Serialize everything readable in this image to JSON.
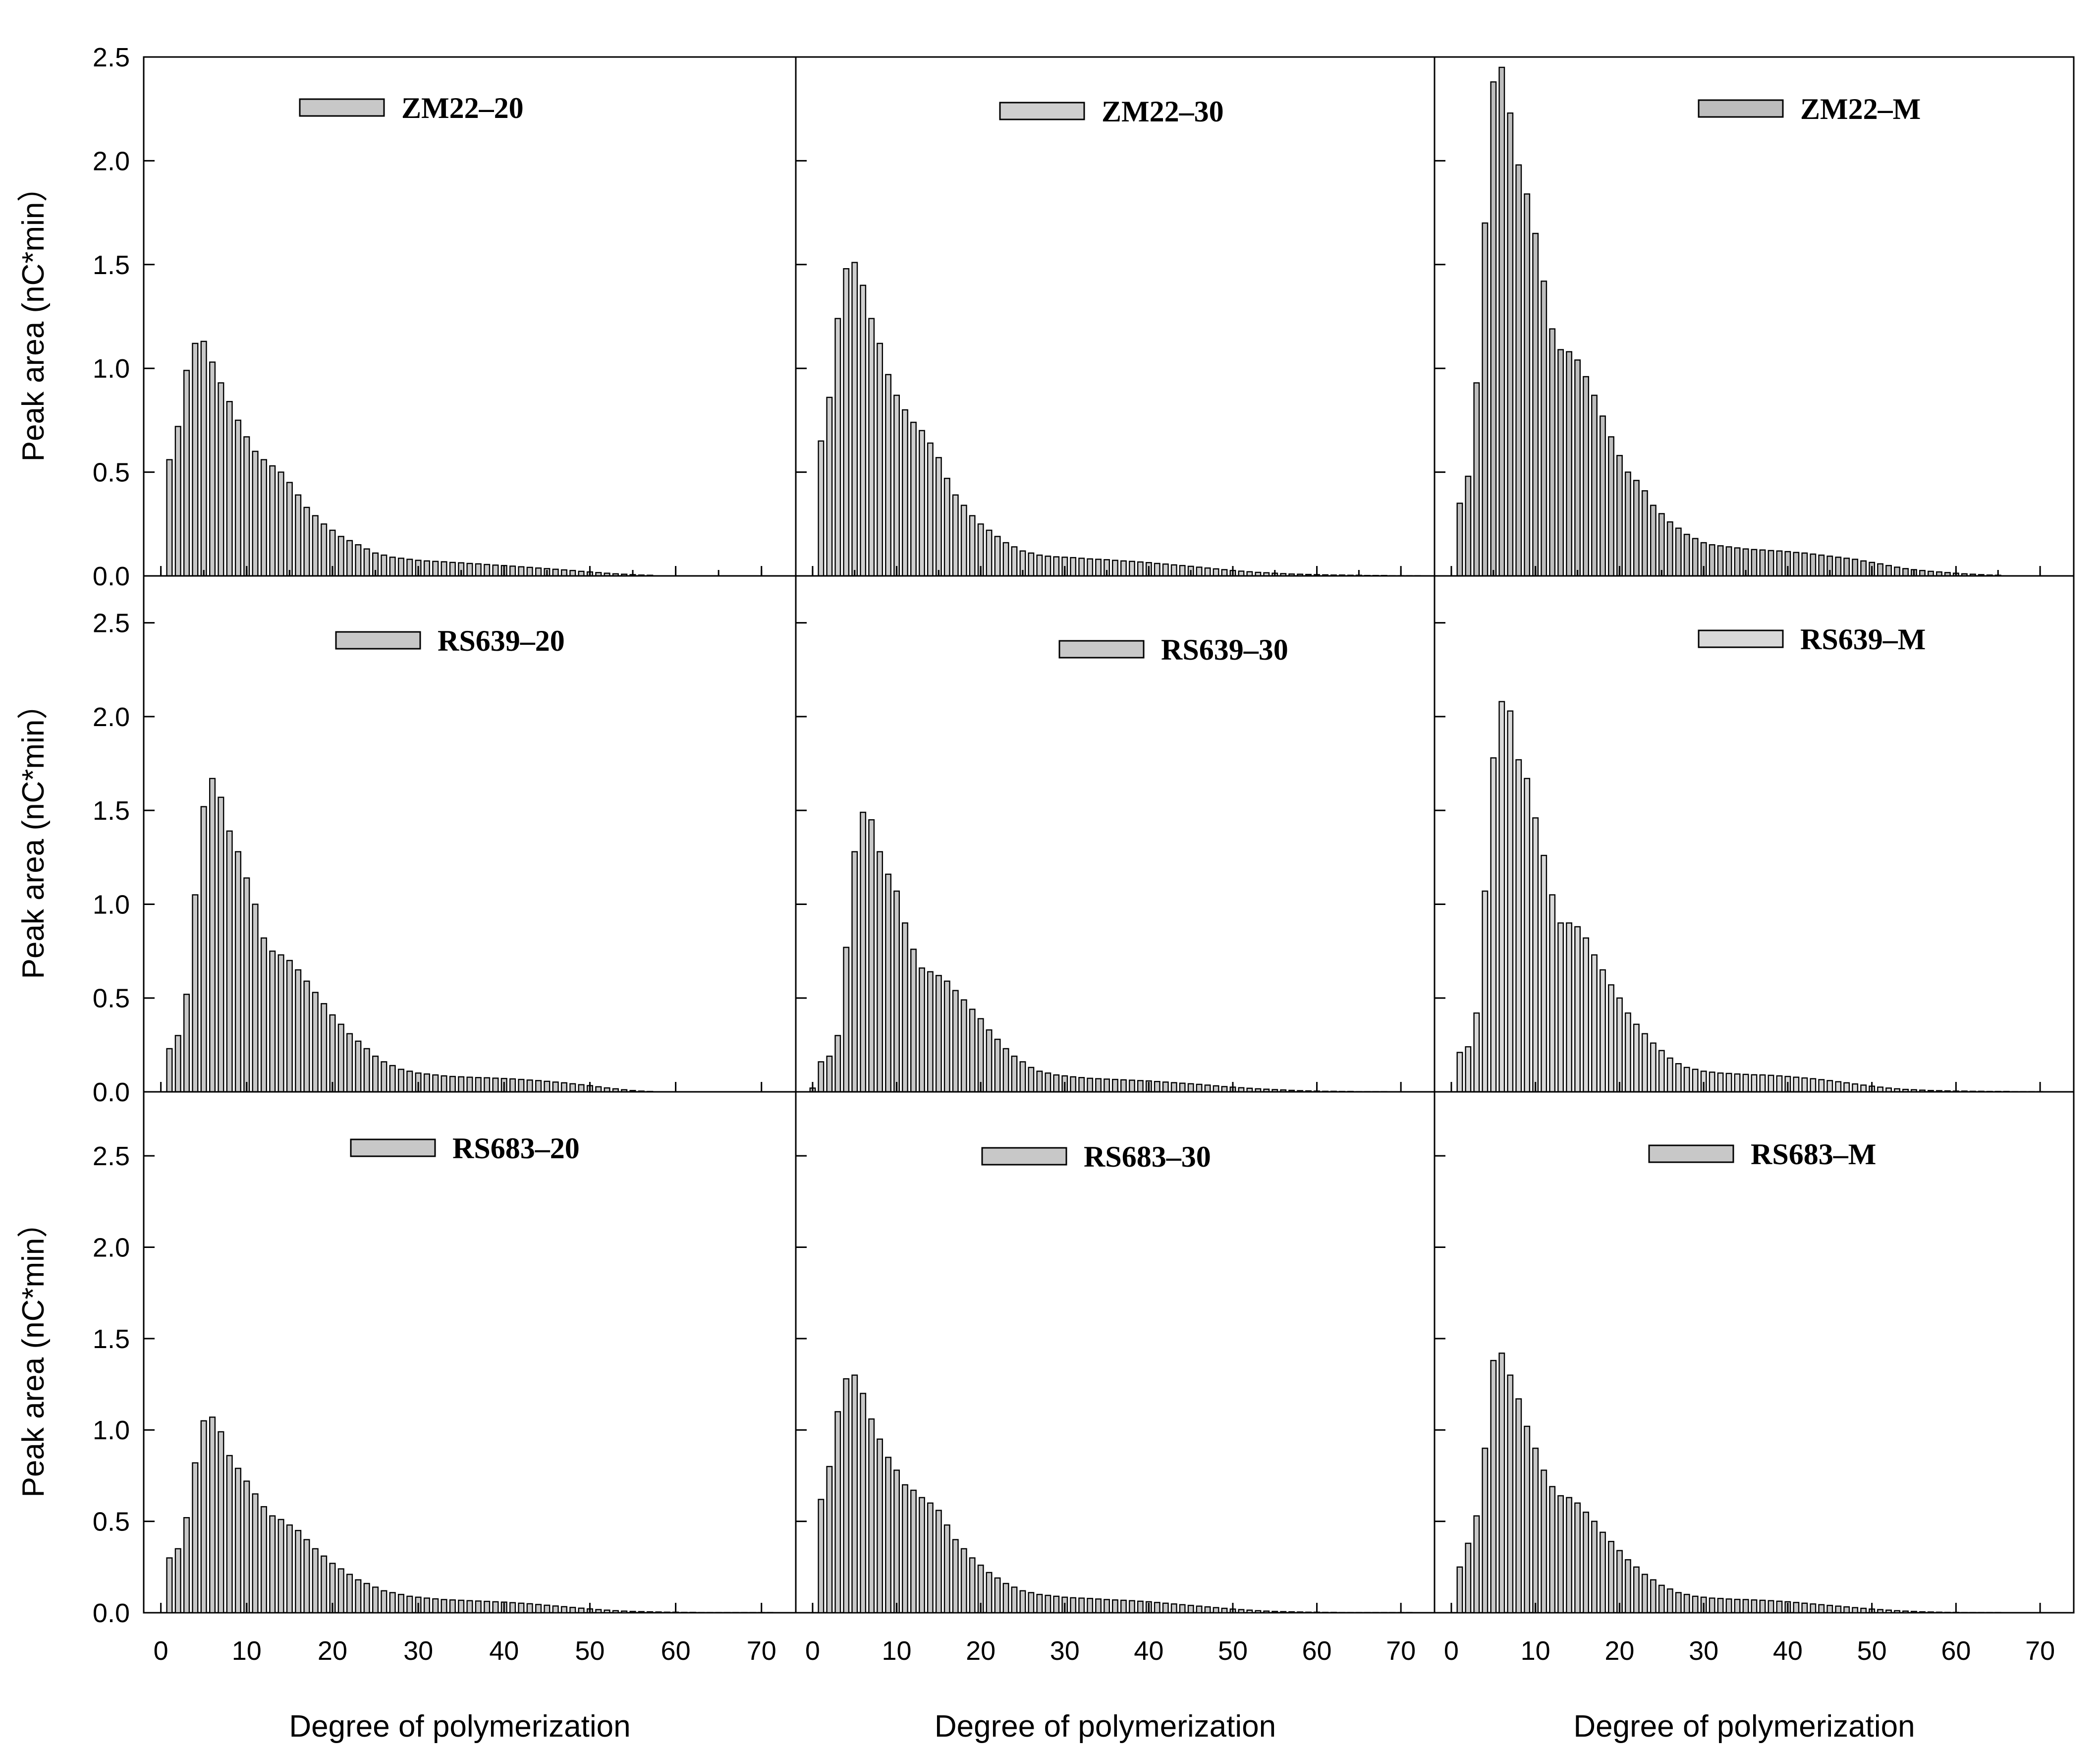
{
  "figure": {
    "x_axis_label": "Degree of polymerization",
    "y_axis_label": "Peak area (nC*min）"
  },
  "chart_data": [
    {
      "type": "bar",
      "title": "",
      "legend": "ZM22–20",
      "fill": "#c8c8c8",
      "xlabel": "Degree of polymerization",
      "ylabel": "Peak area (nC*min）",
      "xlim": [
        -2,
        74
      ],
      "ylim": [
        0,
        2.5
      ],
      "xticks": [
        0,
        10,
        20,
        30,
        40,
        50,
        60,
        70
      ],
      "xtick_labels": [
        "0",
        "10",
        "20",
        "30",
        "40",
        "50",
        "60",
        "70"
      ],
      "yticks": [
        0,
        0.5,
        1.0,
        1.5,
        2.0,
        2.5
      ],
      "ytick_labels": [
        "0.0",
        "0.5",
        "1.0",
        "1.5",
        "2.0",
        "2.5"
      ],
      "x_start": 1,
      "values": [
        0.56,
        0.72,
        0.99,
        1.12,
        1.13,
        1.03,
        0.93,
        0.84,
        0.75,
        0.67,
        0.6,
        0.56,
        0.53,
        0.5,
        0.45,
        0.39,
        0.33,
        0.29,
        0.25,
        0.22,
        0.19,
        0.17,
        0.15,
        0.13,
        0.11,
        0.1,
        0.09,
        0.085,
        0.08,
        0.075,
        0.072,
        0.07,
        0.068,
        0.065,
        0.063,
        0.06,
        0.058,
        0.055,
        0.052,
        0.05,
        0.047,
        0.044,
        0.041,
        0.038,
        0.035,
        0.032,
        0.029,
        0.026,
        0.022,
        0.019,
        0.016,
        0.013,
        0.01,
        0.008,
        0.006,
        0.004,
        0.003
      ]
    },
    {
      "type": "bar",
      "title": "",
      "legend": "ZM22–30",
      "fill": "#cfcfcf",
      "xlabel": "Degree of polymerization",
      "ylabel": "Peak area (nC*min）",
      "xlim": [
        -2,
        74
      ],
      "ylim": [
        0,
        2.5
      ],
      "xticks": [
        0,
        10,
        20,
        30,
        40,
        50,
        60,
        70
      ],
      "xtick_labels": [
        "0",
        "10",
        "20",
        "30",
        "40",
        "50",
        "60",
        "70"
      ],
      "yticks": [
        0,
        0.5,
        1.0,
        1.5,
        2.0,
        2.5
      ],
      "ytick_labels": [
        "0.0",
        "0.5",
        "1.0",
        "1.5",
        "2.0",
        "2.5"
      ],
      "x_start": 1,
      "values": [
        0.65,
        0.86,
        1.24,
        1.48,
        1.51,
        1.4,
        1.24,
        1.12,
        0.97,
        0.87,
        0.8,
        0.74,
        0.7,
        0.64,
        0.57,
        0.47,
        0.39,
        0.34,
        0.29,
        0.25,
        0.22,
        0.19,
        0.16,
        0.14,
        0.12,
        0.11,
        0.1,
        0.095,
        0.092,
        0.09,
        0.088,
        0.085,
        0.082,
        0.08,
        0.078,
        0.075,
        0.072,
        0.07,
        0.067,
        0.064,
        0.06,
        0.057,
        0.053,
        0.05,
        0.046,
        0.042,
        0.038,
        0.034,
        0.03,
        0.026,
        0.023,
        0.02,
        0.017,
        0.015,
        0.013,
        0.011,
        0.009,
        0.008,
        0.007,
        0.006,
        0.005,
        0.004,
        0.004,
        0.003,
        0.003,
        0.002,
        0.002,
        0.002,
        0.001,
        0.001,
        0.001,
        0.001
      ]
    },
    {
      "type": "bar",
      "title": "",
      "legend": "ZM22–M",
      "fill": "#bdbdbd",
      "xlabel": "Degree of polymerization",
      "ylabel": "Peak area (nC*min）",
      "xlim": [
        -2,
        74
      ],
      "ylim": [
        0,
        2.5
      ],
      "xticks": [
        0,
        10,
        20,
        30,
        40,
        50,
        60,
        70
      ],
      "xtick_labels": [
        "0",
        "10",
        "20",
        "30",
        "40",
        "50",
        "60",
        "70"
      ],
      "yticks": [
        0,
        0.5,
        1.0,
        1.5,
        2.0,
        2.5
      ],
      "ytick_labels": [
        "0.0",
        "0.5",
        "1.0",
        "1.5",
        "2.0",
        "2.5"
      ],
      "x_start": 1,
      "values": [
        0.35,
        0.48,
        0.93,
        1.7,
        2.38,
        2.45,
        2.23,
        1.98,
        1.84,
        1.65,
        1.42,
        1.19,
        1.09,
        1.08,
        1.04,
        0.96,
        0.87,
        0.77,
        0.67,
        0.58,
        0.5,
        0.46,
        0.41,
        0.34,
        0.3,
        0.26,
        0.23,
        0.2,
        0.18,
        0.16,
        0.15,
        0.145,
        0.14,
        0.135,
        0.13,
        0.127,
        0.125,
        0.122,
        0.12,
        0.117,
        0.113,
        0.11,
        0.105,
        0.1,
        0.095,
        0.09,
        0.085,
        0.08,
        0.072,
        0.065,
        0.058,
        0.05,
        0.042,
        0.035,
        0.03,
        0.026,
        0.022,
        0.019,
        0.016,
        0.013,
        0.01,
        0.008,
        0.006,
        0.004,
        0.003
      ]
    },
    {
      "type": "bar",
      "title": "",
      "legend": "RS639–20",
      "fill": "#c8c8c8",
      "xlabel": "Degree of polymerization",
      "ylabel": "Peak area (nC*min）",
      "xlim": [
        -2,
        74
      ],
      "ylim": [
        0,
        2.75
      ],
      "xticks": [
        0,
        10,
        20,
        30,
        40,
        50,
        60,
        70
      ],
      "xtick_labels": [
        "0",
        "10",
        "20",
        "30",
        "40",
        "50",
        "60",
        "70"
      ],
      "yticks": [
        0,
        0.5,
        1.0,
        1.5,
        2.0,
        2.5
      ],
      "ytick_labels": [
        "0.0",
        "0.5",
        "1.0",
        "1.5",
        "2.0",
        "2.5"
      ],
      "x_start": 1,
      "values": [
        0.23,
        0.3,
        0.52,
        1.05,
        1.52,
        1.67,
        1.57,
        1.39,
        1.28,
        1.14,
        1.0,
        0.82,
        0.75,
        0.73,
        0.7,
        0.65,
        0.59,
        0.53,
        0.47,
        0.41,
        0.36,
        0.31,
        0.27,
        0.23,
        0.19,
        0.16,
        0.14,
        0.12,
        0.11,
        0.1,
        0.095,
        0.09,
        0.085,
        0.082,
        0.08,
        0.078,
        0.076,
        0.075,
        0.073,
        0.071,
        0.069,
        0.066,
        0.063,
        0.06,
        0.056,
        0.052,
        0.048,
        0.043,
        0.038,
        0.033,
        0.027,
        0.021,
        0.016,
        0.011,
        0.007,
        0.004,
        0.002
      ]
    },
    {
      "type": "bar",
      "title": "",
      "legend": "RS639–30",
      "fill": "#c8c8c8",
      "xlabel": "Degree of polymerization",
      "ylabel": "Peak area (nC*min）",
      "xlim": [
        -2,
        74
      ],
      "ylim": [
        0,
        2.75
      ],
      "xticks": [
        0,
        10,
        20,
        30,
        40,
        50,
        60,
        70
      ],
      "xtick_labels": [
        "0",
        "10",
        "20",
        "30",
        "40",
        "50",
        "60",
        "70"
      ],
      "yticks": [
        0,
        0.5,
        1.0,
        1.5,
        2.0,
        2.5
      ],
      "ytick_labels": [
        "0.0",
        "0.5",
        "1.0",
        "1.5",
        "2.0",
        "2.5"
      ],
      "x_start": 0,
      "values": [
        0.02,
        0.16,
        0.19,
        0.3,
        0.77,
        1.28,
        1.49,
        1.45,
        1.28,
        1.16,
        1.07,
        0.9,
        0.76,
        0.66,
        0.64,
        0.62,
        0.59,
        0.54,
        0.49,
        0.44,
        0.39,
        0.33,
        0.28,
        0.23,
        0.19,
        0.16,
        0.13,
        0.11,
        0.1,
        0.09,
        0.085,
        0.08,
        0.076,
        0.072,
        0.07,
        0.068,
        0.066,
        0.064,
        0.062,
        0.06,
        0.058,
        0.055,
        0.052,
        0.049,
        0.046,
        0.043,
        0.04,
        0.036,
        0.032,
        0.028,
        0.025,
        0.022,
        0.019,
        0.016,
        0.014,
        0.012,
        0.01,
        0.008,
        0.006,
        0.005,
        0.004,
        0.003,
        0.003,
        0.002,
        0.002,
        0.001,
        0.001,
        0.001,
        0.001
      ]
    },
    {
      "type": "bar",
      "title": "",
      "legend": "RS639–M",
      "fill": "#d9d9d9",
      "xlabel": "Degree of polymerization",
      "ylabel": "Peak area (nC*min）",
      "xlim": [
        -2,
        74
      ],
      "ylim": [
        0,
        2.75
      ],
      "xticks": [
        0,
        10,
        20,
        30,
        40,
        50,
        60,
        70
      ],
      "xtick_labels": [
        "0",
        "10",
        "20",
        "30",
        "40",
        "50",
        "60",
        "70"
      ],
      "yticks": [
        0,
        0.5,
        1.0,
        1.5,
        2.0,
        2.5
      ],
      "ytick_labels": [
        "0.0",
        "0.5",
        "1.0",
        "1.5",
        "2.0",
        "2.5"
      ],
      "x_start": 1,
      "values": [
        0.21,
        0.24,
        0.42,
        1.07,
        1.78,
        2.08,
        2.03,
        1.77,
        1.67,
        1.46,
        1.26,
        1.05,
        0.9,
        0.9,
        0.88,
        0.82,
        0.73,
        0.65,
        0.57,
        0.5,
        0.42,
        0.36,
        0.31,
        0.26,
        0.22,
        0.18,
        0.15,
        0.13,
        0.12,
        0.11,
        0.105,
        0.1,
        0.098,
        0.095,
        0.093,
        0.091,
        0.09,
        0.088,
        0.085,
        0.082,
        0.078,
        0.074,
        0.07,
        0.065,
        0.06,
        0.054,
        0.048,
        0.042,
        0.036,
        0.03,
        0.025,
        0.02,
        0.016,
        0.013,
        0.011,
        0.009,
        0.007,
        0.006,
        0.005,
        0.004,
        0.004,
        0.003,
        0.003,
        0.002,
        0.002,
        0.002,
        0.001,
        0.001,
        0.001,
        0.001
      ]
    },
    {
      "type": "bar",
      "title": "",
      "legend": "RS683–20",
      "fill": "#c8c8c8",
      "xlabel": "Degree of polymerization",
      "ylabel": "Peak area (nC*min）",
      "xlim": [
        -2,
        74
      ],
      "ylim": [
        0,
        2.85
      ],
      "xticks": [
        0,
        10,
        20,
        30,
        40,
        50,
        60,
        70
      ],
      "xtick_labels": [
        "0",
        "10",
        "20",
        "30",
        "40",
        "50",
        "60",
        "70"
      ],
      "yticks": [
        0,
        0.5,
        1.0,
        1.5,
        2.0,
        2.5
      ],
      "ytick_labels": [
        "0.0",
        "0.5",
        "1.0",
        "1.5",
        "2.0",
        "2.5"
      ],
      "x_start": 1,
      "values": [
        0.3,
        0.35,
        0.52,
        0.82,
        1.05,
        1.07,
        0.99,
        0.86,
        0.79,
        0.72,
        0.65,
        0.58,
        0.53,
        0.51,
        0.48,
        0.45,
        0.4,
        0.35,
        0.31,
        0.27,
        0.24,
        0.21,
        0.18,
        0.16,
        0.14,
        0.12,
        0.11,
        0.1,
        0.09,
        0.085,
        0.08,
        0.076,
        0.072,
        0.07,
        0.068,
        0.066,
        0.064,
        0.062,
        0.06,
        0.058,
        0.055,
        0.052,
        0.049,
        0.045,
        0.041,
        0.037,
        0.033,
        0.029,
        0.025,
        0.021,
        0.017,
        0.014,
        0.011,
        0.009,
        0.007,
        0.006,
        0.005,
        0.004,
        0.003,
        0.003,
        0.002,
        0.002,
        0.001,
        0.001,
        0.001,
        0.001,
        0.001,
        0.001,
        0.001,
        0.001,
        0.001
      ]
    },
    {
      "type": "bar",
      "title": "",
      "legend": "RS683–30",
      "fill": "#c8c8c8",
      "xlabel": "Degree of polymerization",
      "ylabel": "Peak area (nC*min）",
      "xlim": [
        -2,
        74
      ],
      "ylim": [
        0,
        2.85
      ],
      "xticks": [
        0,
        10,
        20,
        30,
        40,
        50,
        60,
        70
      ],
      "xtick_labels": [
        "0",
        "10",
        "20",
        "30",
        "40",
        "50",
        "60",
        "70"
      ],
      "yticks": [
        0,
        0.5,
        1.0,
        1.5,
        2.0,
        2.5
      ],
      "ytick_labels": [
        "0.0",
        "0.5",
        "1.0",
        "1.5",
        "2.0",
        "2.5"
      ],
      "x_start": 1,
      "values": [
        0.62,
        0.8,
        1.1,
        1.28,
        1.3,
        1.2,
        1.06,
        0.95,
        0.85,
        0.78,
        0.7,
        0.67,
        0.63,
        0.6,
        0.56,
        0.48,
        0.4,
        0.35,
        0.3,
        0.26,
        0.22,
        0.19,
        0.16,
        0.14,
        0.12,
        0.11,
        0.1,
        0.095,
        0.09,
        0.085,
        0.082,
        0.08,
        0.078,
        0.075,
        0.072,
        0.07,
        0.068,
        0.066,
        0.063,
        0.06,
        0.056,
        0.052,
        0.048,
        0.044,
        0.04,
        0.036,
        0.032,
        0.028,
        0.024,
        0.02,
        0.017,
        0.014,
        0.011,
        0.009,
        0.007,
        0.006,
        0.005,
        0.004,
        0.003,
        0.003,
        0.002,
        0.002,
        0.001,
        0.001,
        0.001,
        0.001,
        0.001,
        0.001,
        0.001,
        0.001,
        0.001
      ]
    },
    {
      "type": "bar",
      "title": "",
      "legend": "RS683–M",
      "fill": "#c8c8c8",
      "xlabel": "Degree of polymerization",
      "ylabel": "Peak area (nC*min）",
      "xlim": [
        -2,
        74
      ],
      "ylim": [
        0,
        2.85
      ],
      "xticks": [
        0,
        10,
        20,
        30,
        40,
        50,
        60,
        70
      ],
      "xtick_labels": [
        "0",
        "10",
        "20",
        "30",
        "40",
        "50",
        "60",
        "70"
      ],
      "yticks": [
        0,
        0.5,
        1.0,
        1.5,
        2.0,
        2.5
      ],
      "ytick_labels": [
        "0.0",
        "0.5",
        "1.0",
        "1.5",
        "2.0",
        "2.5"
      ],
      "x_start": 1,
      "values": [
        0.25,
        0.38,
        0.53,
        0.9,
        1.38,
        1.42,
        1.3,
        1.17,
        1.02,
        0.9,
        0.78,
        0.69,
        0.64,
        0.63,
        0.6,
        0.55,
        0.5,
        0.44,
        0.39,
        0.34,
        0.29,
        0.25,
        0.21,
        0.18,
        0.15,
        0.13,
        0.11,
        0.1,
        0.09,
        0.085,
        0.08,
        0.078,
        0.075,
        0.073,
        0.072,
        0.07,
        0.068,
        0.066,
        0.063,
        0.06,
        0.056,
        0.052,
        0.048,
        0.044,
        0.04,
        0.036,
        0.032,
        0.028,
        0.024,
        0.02,
        0.017,
        0.014,
        0.011,
        0.009,
        0.007,
        0.005,
        0.004,
        0.003,
        0.002,
        0.002,
        0.001,
        0.001,
        0.001,
        0.001,
        0.001
      ]
    }
  ]
}
